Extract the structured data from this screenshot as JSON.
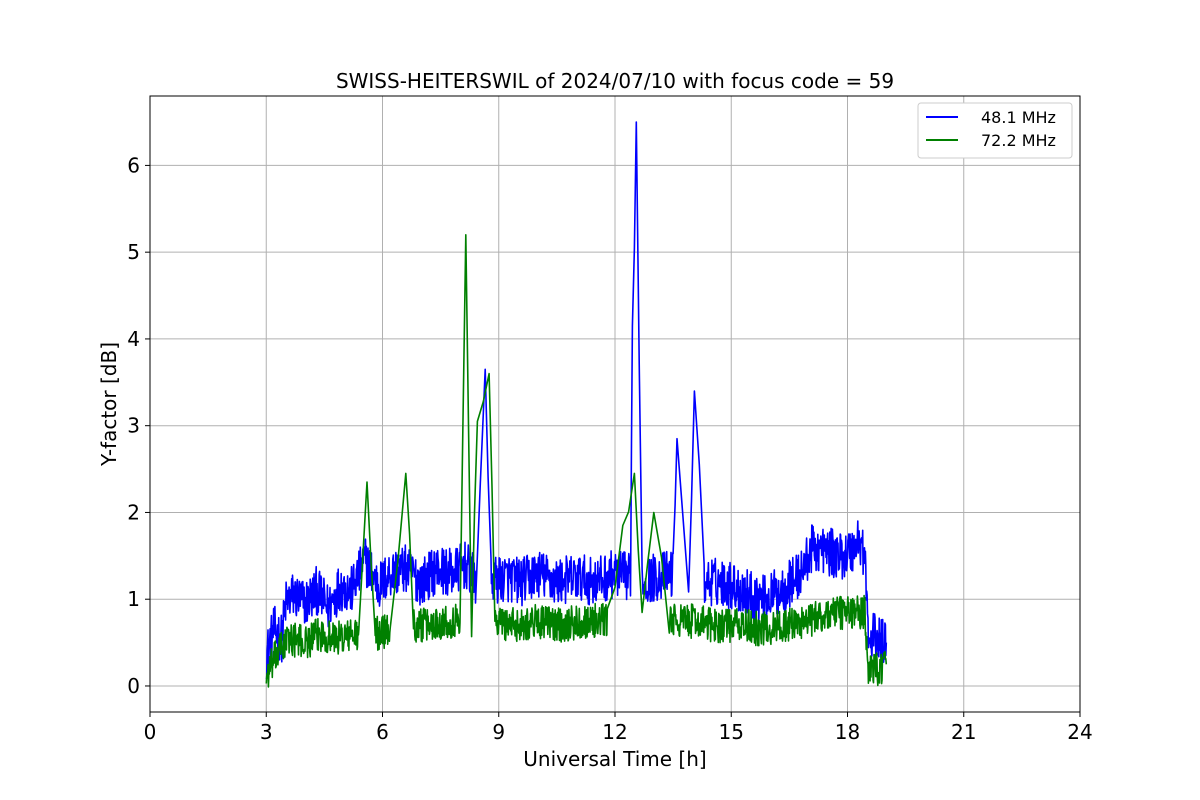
{
  "chart_data": {
    "type": "line",
    "title": "SWISS-HEITERSWIL of 2024/07/10 with focus code = 59",
    "xlabel": "Universal Time [h]",
    "ylabel": "Y-factor [dB]",
    "xlim": [
      0,
      24
    ],
    "ylim": [
      -0.3,
      6.8
    ],
    "xticks": [
      0,
      3,
      6,
      9,
      12,
      15,
      18,
      21,
      24
    ],
    "yticks": [
      0,
      1,
      2,
      3,
      4,
      5,
      6
    ],
    "grid": true,
    "legend_position": "top-right",
    "series": [
      {
        "name": "48.1 MHz",
        "color": "#0000ff",
        "points": [
          [
            3.0,
            0.35
          ],
          [
            3.2,
            0.65
          ],
          [
            3.4,
            0.55
          ],
          [
            3.5,
            0.95
          ],
          [
            3.7,
            1.05
          ],
          [
            4.0,
            0.95
          ],
          [
            4.3,
            1.1
          ],
          [
            4.6,
            0.9
          ],
          [
            4.9,
            1.15
          ],
          [
            5.2,
            1.1
          ],
          [
            5.55,
            1.45
          ],
          [
            5.9,
            1.15
          ],
          [
            6.2,
            1.3
          ],
          [
            6.6,
            1.35
          ],
          [
            7.0,
            1.2
          ],
          [
            7.4,
            1.35
          ],
          [
            7.8,
            1.3
          ],
          [
            8.15,
            1.4
          ],
          [
            8.4,
            1.2
          ],
          [
            8.65,
            3.65
          ],
          [
            8.8,
            1.2
          ],
          [
            9.2,
            1.25
          ],
          [
            9.6,
            1.2
          ],
          [
            10.0,
            1.3
          ],
          [
            10.5,
            1.2
          ],
          [
            11.0,
            1.25
          ],
          [
            11.5,
            1.2
          ],
          [
            12.0,
            1.3
          ],
          [
            12.4,
            1.25
          ],
          [
            12.45,
            4.15
          ],
          [
            12.55,
            6.5
          ],
          [
            12.7,
            1.2
          ],
          [
            13.0,
            1.25
          ],
          [
            13.5,
            1.3
          ],
          [
            13.6,
            2.85
          ],
          [
            13.9,
            1.25
          ],
          [
            14.05,
            3.4
          ],
          [
            14.3,
            1.2
          ],
          [
            14.8,
            1.2
          ],
          [
            15.3,
            1.1
          ],
          [
            15.8,
            1.0
          ],
          [
            16.3,
            1.1
          ],
          [
            16.8,
            1.3
          ],
          [
            17.1,
            1.6
          ],
          [
            17.5,
            1.55
          ],
          [
            17.8,
            1.5
          ],
          [
            18.1,
            1.55
          ],
          [
            18.3,
            1.7
          ],
          [
            18.45,
            1.5
          ],
          [
            18.55,
            0.45
          ],
          [
            18.7,
            0.6
          ],
          [
            18.85,
            0.5
          ],
          [
            19.0,
            0.5
          ]
        ]
      },
      {
        "name": "72.2 MHz",
        "color": "#008000",
        "points": [
          [
            3.0,
            0.1
          ],
          [
            3.2,
            0.3
          ],
          [
            3.4,
            0.45
          ],
          [
            3.6,
            0.55
          ],
          [
            4.0,
            0.5
          ],
          [
            4.4,
            0.6
          ],
          [
            4.8,
            0.55
          ],
          [
            5.4,
            0.6
          ],
          [
            5.6,
            2.35
          ],
          [
            5.8,
            0.6
          ],
          [
            6.2,
            0.65
          ],
          [
            6.6,
            2.45
          ],
          [
            6.8,
            0.7
          ],
          [
            7.2,
            0.7
          ],
          [
            7.6,
            0.75
          ],
          [
            8.0,
            0.75
          ],
          [
            8.15,
            5.2
          ],
          [
            8.3,
            0.75
          ],
          [
            8.45,
            3.05
          ],
          [
            8.75,
            3.6
          ],
          [
            8.9,
            0.75
          ],
          [
            9.4,
            0.7
          ],
          [
            10.0,
            0.75
          ],
          [
            10.6,
            0.7
          ],
          [
            11.2,
            0.75
          ],
          [
            11.8,
            0.75
          ],
          [
            12.2,
            1.85
          ],
          [
            12.5,
            2.45
          ],
          [
            12.7,
            0.75
          ],
          [
            13.0,
            2.0
          ],
          [
            13.4,
            0.75
          ],
          [
            14.0,
            0.75
          ],
          [
            14.6,
            0.7
          ],
          [
            15.2,
            0.7
          ],
          [
            15.8,
            0.65
          ],
          [
            16.4,
            0.7
          ],
          [
            17.0,
            0.75
          ],
          [
            17.6,
            0.85
          ],
          [
            18.2,
            0.85
          ],
          [
            18.45,
            0.85
          ],
          [
            18.55,
            0.15
          ],
          [
            18.75,
            0.2
          ],
          [
            19.0,
            0.25
          ]
        ]
      }
    ]
  }
}
